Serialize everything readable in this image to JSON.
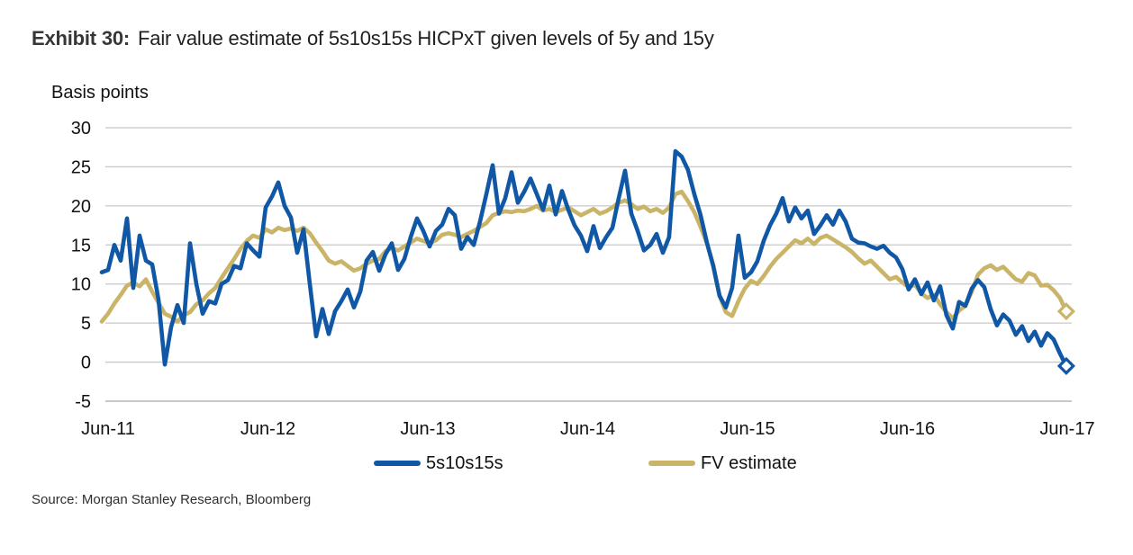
{
  "header": {
    "exhibit_label": "Exhibit 30:",
    "title": "Fair value estimate of 5s10s15s HICPxT given levels of 5y and 15y"
  },
  "footer": {
    "source": "Source: Morgan Stanley Research, Bloomberg"
  },
  "colors": {
    "series_blue": "#1058A6",
    "series_tan": "#C9B467",
    "gridline": "#C8C8C8",
    "axis_bottom": "#A6A6A6",
    "tick_text": "#111111"
  },
  "chart_data": {
    "type": "line",
    "title": "Fair value estimate of 5s10s15s HICPxT given levels of 5y and 15y",
    "ylabel": "Basis points",
    "xlabel": "",
    "ylim": [
      -5,
      30
    ],
    "grid": true,
    "legend_position": "bottom",
    "y_ticks": [
      {
        "v": 30,
        "label": "30"
      },
      {
        "v": 25,
        "label": "25"
      },
      {
        "v": 20,
        "label": "20"
      },
      {
        "v": 15,
        "label": "15"
      },
      {
        "v": 10,
        "label": "10"
      },
      {
        "v": 5,
        "label": "5"
      },
      {
        "v": 0,
        "label": "0"
      },
      {
        "v": -5,
        "label": "-5"
      }
    ],
    "x_unit": "months since Jun-2011",
    "x_ticks": [
      {
        "m": 0,
        "label": "Jun-11"
      },
      {
        "m": 12,
        "label": "Jun-12"
      },
      {
        "m": 24,
        "label": "Jun-13"
      },
      {
        "m": 36,
        "label": "Jun-14"
      },
      {
        "m": 48,
        "label": "Jun-15"
      },
      {
        "m": 60,
        "label": "Jun-16"
      },
      {
        "m": 72,
        "label": "Jun-17"
      }
    ],
    "series": [
      {
        "name": "FV estimate",
        "color": "#C9B467",
        "end_marker": "diamond",
        "x_start": -0.4732,
        "x_step": 0.4732,
        "values": [
          5.2,
          6.2,
          7.5,
          8.6,
          9.8,
          10.2,
          9.7,
          10.6,
          9.0,
          7.6,
          6.2,
          5.8,
          5.2,
          6.0,
          6.4,
          7.4,
          7.9,
          8.8,
          9.5,
          10.8,
          12.0,
          13.2,
          14.5,
          15.5,
          16.2,
          15.9,
          17.0,
          16.6,
          17.2,
          16.9,
          17.1,
          16.8,
          17.2,
          16.5,
          15.3,
          14.2,
          13.0,
          12.6,
          12.9,
          12.3,
          11.7,
          12.0,
          12.6,
          13.0,
          13.2,
          14.2,
          14.6,
          14.3,
          14.8,
          15.3,
          15.8,
          15.5,
          15.2,
          15.6,
          16.3,
          16.5,
          16.3,
          16.0,
          16.4,
          16.8,
          17.3,
          17.8,
          18.8,
          19.1,
          19.3,
          19.2,
          19.4,
          19.3,
          19.6,
          20.0,
          19.4,
          19.6,
          19.2,
          19.5,
          19.8,
          19.3,
          18.8,
          19.2,
          19.6,
          19.0,
          19.3,
          19.8,
          20.4,
          20.7,
          20.2,
          19.6,
          19.9,
          19.3,
          19.6,
          19.1,
          19.8,
          21.5,
          21.8,
          20.6,
          19.2,
          17.3,
          15.2,
          12.5,
          8.5,
          6.4,
          5.9,
          7.8,
          9.4,
          10.4,
          10.0,
          11.0,
          12.2,
          13.2,
          14.0,
          14.8,
          15.6,
          15.2,
          15.8,
          15.1,
          15.9,
          16.2,
          15.7,
          15.2,
          14.7,
          14.1,
          13.3,
          12.6,
          13.0,
          12.2,
          11.4,
          10.6,
          10.9,
          10.2,
          9.6,
          9.9,
          8.8,
          8.2,
          8.6,
          7.4,
          6.4,
          5.6,
          6.6,
          7.2,
          9.0,
          11.2,
          12.0,
          12.4,
          11.8,
          12.2,
          11.4,
          10.6,
          10.3,
          11.4,
          11.1,
          9.8,
          9.9,
          9.2,
          8.2,
          6.5
        ]
      },
      {
        "name": "5s10s15s",
        "color": "#1058A6",
        "end_marker": "diamond",
        "x_start": -0.4732,
        "x_step": 0.4732,
        "values": [
          11.5,
          11.8,
          15.0,
          13.0,
          18.4,
          9.5,
          16.2,
          13.0,
          12.5,
          8.0,
          -0.3,
          4.5,
          7.3,
          5.0,
          15.2,
          10.0,
          6.2,
          7.8,
          7.5,
          10.0,
          10.5,
          12.3,
          12.0,
          15.2,
          14.3,
          13.5,
          19.8,
          21.2,
          23.0,
          20.0,
          18.5,
          14.0,
          17.0,
          10.0,
          3.3,
          6.8,
          3.6,
          6.5,
          7.8,
          9.3,
          7.0,
          9.0,
          13.0,
          14.1,
          11.7,
          13.8,
          15.2,
          11.8,
          13.2,
          16.0,
          18.4,
          16.8,
          14.8,
          16.8,
          17.6,
          19.6,
          18.8,
          14.5,
          16.0,
          15.0,
          18.0,
          21.5,
          25.2,
          19.0,
          21.0,
          24.3,
          20.4,
          21.8,
          23.5,
          21.5,
          19.5,
          22.6,
          18.9,
          21.9,
          19.5,
          17.5,
          16.2,
          14.2,
          17.4,
          14.6,
          16.0,
          17.2,
          21.0,
          24.5,
          19.0,
          16.8,
          14.3,
          15.0,
          16.4,
          14.0,
          16.0,
          27.0,
          26.3,
          24.6,
          21.5,
          18.8,
          15.3,
          12.3,
          8.5,
          7.0,
          9.5,
          16.2,
          10.8,
          11.5,
          12.9,
          15.5,
          17.5,
          19.0,
          21.0,
          18.0,
          19.8,
          18.4,
          19.4,
          16.4,
          17.5,
          18.8,
          17.6,
          19.4,
          18.0,
          15.8,
          15.3,
          15.2,
          14.8,
          14.5,
          14.9,
          14.0,
          13.4,
          11.9,
          9.3,
          10.6,
          8.7,
          10.2,
          7.9,
          9.7,
          6.0,
          4.3,
          7.7,
          7.2,
          9.4,
          10.5,
          9.6,
          6.8,
          4.7,
          6.1,
          5.3,
          3.5,
          4.6,
          2.7,
          3.9,
          2.1,
          3.7,
          2.9,
          1.1,
          -0.5
        ]
      }
    ],
    "legend": [
      {
        "label": "5s10s15s",
        "color": "#1058A6"
      },
      {
        "label": "FV estimate",
        "color": "#C9B467"
      }
    ]
  }
}
